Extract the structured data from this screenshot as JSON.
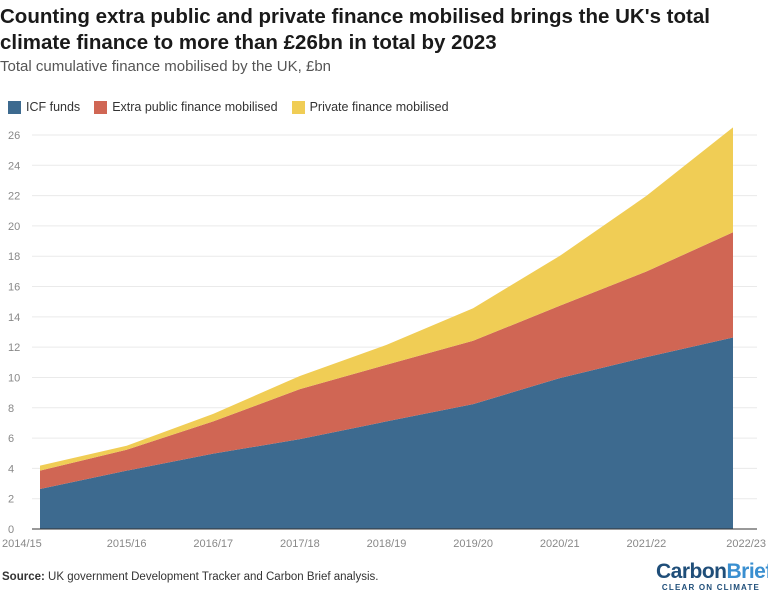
{
  "chart_data": {
    "type": "area",
    "stacked": true,
    "title": "Counting extra public and private finance mobilised brings the UK's total climate finance to more than £26bn in total by 2023",
    "subtitle": "Total cumulative finance mobilised by the UK, £bn",
    "categories": [
      "2014/15",
      "2015/16",
      "2016/17",
      "2017/18",
      "2018/19",
      "2019/20",
      "2020/21",
      "2021/22",
      "2022/23"
    ],
    "series": [
      {
        "name": "ICF funds",
        "color": "#3d6a8f",
        "values": [
          2.64,
          3.85,
          4.97,
          5.93,
          7.1,
          8.24,
          9.96,
          11.34,
          12.64
        ]
      },
      {
        "name": "Extra public finance mobilised",
        "color": "#d06654",
        "values": [
          1.21,
          1.38,
          2.13,
          3.3,
          3.74,
          4.18,
          4.77,
          5.65,
          6.94
        ]
      },
      {
        "name": "Private finance mobilised",
        "color": "#f0cd55",
        "values": [
          0.33,
          0.26,
          0.5,
          0.87,
          1.31,
          2.15,
          3.29,
          4.99,
          6.92
        ]
      }
    ],
    "ylim": [
      0,
      26
    ],
    "yticks": [
      0,
      2,
      4,
      6,
      8,
      10,
      12,
      14,
      16,
      18,
      20,
      22,
      24,
      26
    ],
    "grid": true,
    "legend_position": "top-left"
  },
  "source_label": "Source:",
  "source_text": " UK government Development Tracker and Carbon Brief analysis.",
  "logo": {
    "main": "CarbonBrief",
    "part1": "Carbon",
    "part2": "Brief",
    "tagline": "CLEAR ON CLIMATE",
    "color1": "#1f4e79",
    "color2": "#3a8fd0"
  }
}
